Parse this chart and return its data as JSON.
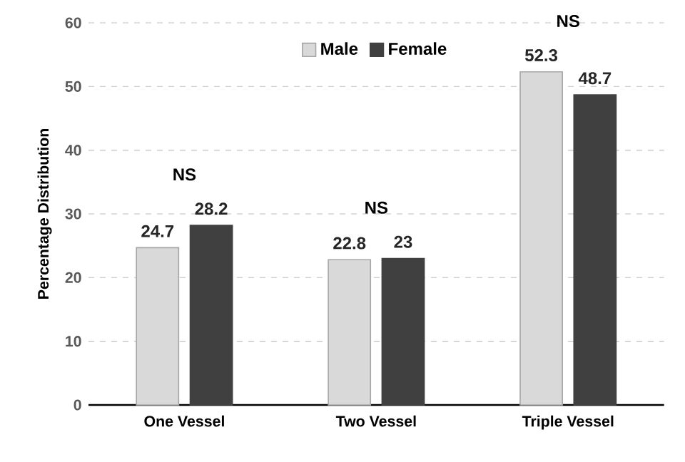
{
  "chart_data": {
    "type": "bar",
    "ylabel": "Percentage Distribution",
    "categories": [
      "One Vessel",
      "Two Vessel",
      "Triple Vessel"
    ],
    "series": [
      {
        "name": "Male",
        "color": "#d9d9d9",
        "values": [
          24.7,
          22.8,
          52.3
        ]
      },
      {
        "name": "Female",
        "color": "#404040",
        "values": [
          28.2,
          23,
          48.7
        ]
      }
    ],
    "ylim": [
      0,
      60
    ],
    "yticks": [
      0,
      10,
      20,
      30,
      40,
      50,
      60
    ],
    "grid": "y",
    "legend": "top",
    "data_labels": true,
    "annotations": [
      "NS",
      "NS",
      "NS"
    ]
  }
}
